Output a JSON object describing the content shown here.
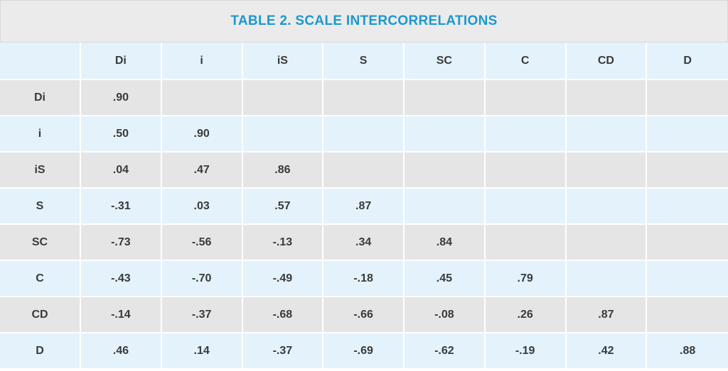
{
  "title": "TABLE 2. SCALE INTERCORRELATIONS",
  "colors": {
    "title": "#1c98cf",
    "row_blue": "#e3f2fb",
    "row_grey": "#e6e5e6",
    "text": "#3a3a3a"
  },
  "columns": [
    "",
    "Di",
    "i",
    "iS",
    "S",
    "SC",
    "C",
    "CD",
    "D"
  ],
  "rows": [
    {
      "label": "Di",
      "cells": [
        ".90",
        "",
        "",
        "",
        "",
        "",
        "",
        ""
      ]
    },
    {
      "label": "i",
      "cells": [
        ".50",
        ".90",
        "",
        "",
        "",
        "",
        "",
        ""
      ]
    },
    {
      "label": "iS",
      "cells": [
        ".04",
        ".47",
        ".86",
        "",
        "",
        "",
        "",
        ""
      ]
    },
    {
      "label": "S",
      "cells": [
        "-.31",
        ".03",
        ".57",
        ".87",
        "",
        "",
        "",
        ""
      ]
    },
    {
      "label": "SC",
      "cells": [
        "-.73",
        "-.56",
        "-.13",
        ".34",
        ".84",
        "",
        "",
        ""
      ]
    },
    {
      "label": "C",
      "cells": [
        "-.43",
        "-.70",
        "-.49",
        "-.18",
        ".45",
        ".79",
        "",
        ""
      ]
    },
    {
      "label": "CD",
      "cells": [
        "-.14",
        "-.37",
        "-.68",
        "-.66",
        "-.08",
        ".26",
        ".87",
        ""
      ]
    },
    {
      "label": "D",
      "cells": [
        ".46",
        ".14",
        "-.37",
        "-.69",
        "-.62",
        "-.19",
        ".42",
        ".88"
      ]
    }
  ]
}
